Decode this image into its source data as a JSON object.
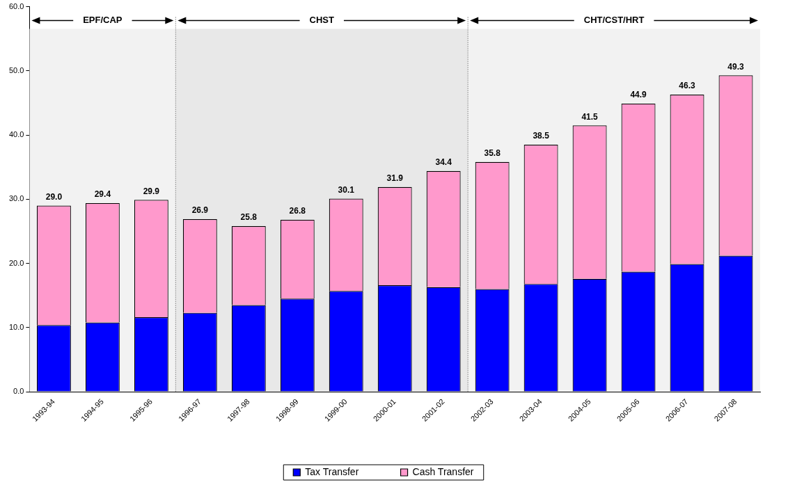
{
  "chart_data": {
    "type": "bar",
    "stacked": true,
    "categories": [
      "1993-94",
      "1994-95",
      "1995-96",
      "1996-97",
      "1997-98",
      "1998-99",
      "1999-00",
      "2000-01",
      "2001-02",
      "2002-03",
      "2003-04",
      "2004-05",
      "2005-06",
      "2006-07",
      "2007-08"
    ],
    "series": [
      {
        "name": "Tax Transfer",
        "color": "#0000ff",
        "values": [
          10.4,
          10.8,
          11.6,
          12.3,
          13.5,
          14.5,
          15.7,
          16.6,
          16.3,
          16.0,
          16.8,
          17.6,
          18.7,
          19.9,
          21.2
        ]
      },
      {
        "name": "Cash Transfer",
        "color": "#ff99cc",
        "values": [
          18.6,
          18.6,
          18.3,
          14.6,
          12.3,
          12.3,
          14.4,
          15.3,
          18.1,
          19.8,
          21.7,
          23.9,
          26.2,
          26.4,
          28.1
        ]
      }
    ],
    "totals": [
      "29.0",
      "29.4",
      "29.9",
      "26.9",
      "25.8",
      "26.8",
      "30.1",
      "31.9",
      "34.4",
      "35.8",
      "38.5",
      "41.5",
      "44.9",
      "46.3",
      "49.3"
    ],
    "ylim": [
      0,
      60
    ],
    "yticks": [
      {
        "value": 0,
        "label": "0.0"
      },
      {
        "value": 10,
        "label": "10.0"
      },
      {
        "value": 20,
        "label": "20.0"
      },
      {
        "value": 30,
        "label": "30.0"
      },
      {
        "value": 40,
        "label": "40.0"
      },
      {
        "value": 50,
        "label": "50.0"
      },
      {
        "value": 60,
        "label": "60.0"
      }
    ],
    "bands": [
      {
        "axis": "x",
        "from": "1993-94",
        "to": "1995-96",
        "label": "EPF/CAP",
        "color": "#f2f2f2"
      },
      {
        "axis": "x",
        "from": "1996-97",
        "to": "2001-02",
        "label": "CHST",
        "color": "#e8e8e8"
      },
      {
        "axis": "x",
        "from": "2002-03",
        "to": "2007-08",
        "label": "CHT/CST/HRT",
        "color": "#f2f2f2"
      }
    ],
    "grid": false,
    "legend": "bottom"
  }
}
